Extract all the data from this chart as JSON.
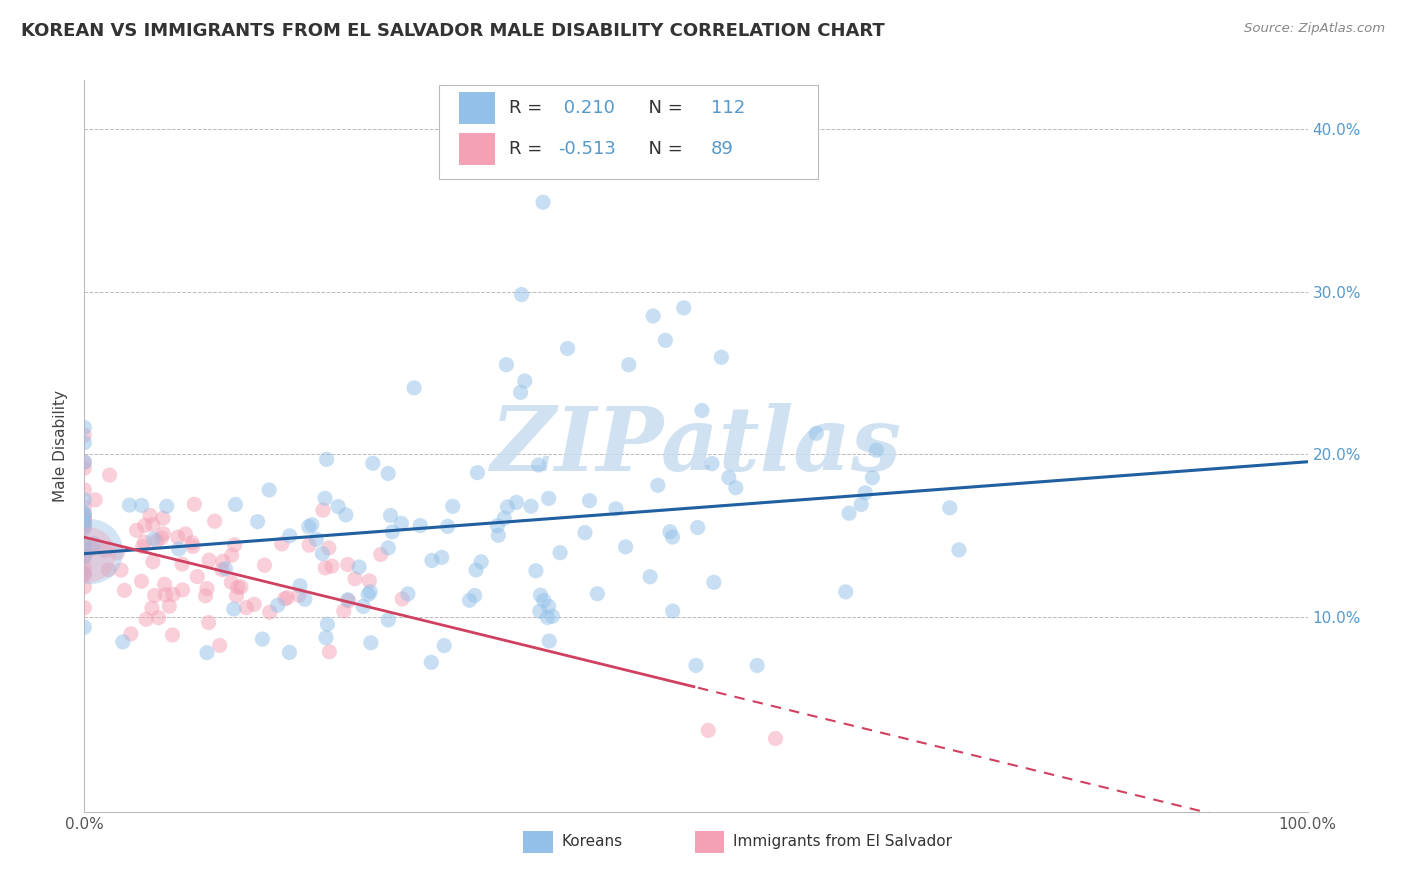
{
  "title": "KOREAN VS IMMIGRANTS FROM EL SALVADOR MALE DISABILITY CORRELATION CHART",
  "source": "Source: ZipAtlas.com",
  "ylabel": "Male Disability",
  "watermark": "ZIPatlas",
  "xlim": [
    0.0,
    1.0
  ],
  "ylim": [
    -0.02,
    0.43
  ],
  "korean_R": 0.21,
  "korean_N": 112,
  "salvador_R": -0.513,
  "salvador_N": 89,
  "legend_labels": [
    "Koreans",
    "Immigrants from El Salvador"
  ],
  "blue_color": "#92C0E8",
  "pink_color": "#F4A0B5",
  "blue_line_color": "#2060A0",
  "pink_line_color": "#D04060",
  "grid_color": "#BBBBBB",
  "title_color": "#333333",
  "source_color": "#888888",
  "background_color": "#FFFFFF",
  "right_tick_color": "#5599CC",
  "watermark_color": "#C8DCF0",
  "point_size": 120,
  "point_alpha": 0.5
}
